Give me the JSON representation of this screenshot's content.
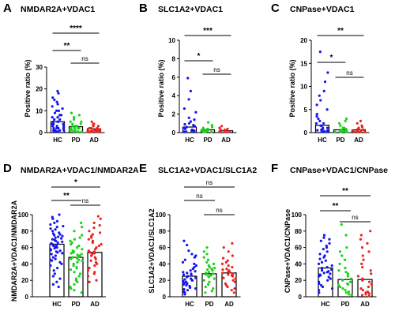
{
  "figure": {
    "groups": [
      "HC",
      "PD",
      "AD"
    ],
    "colors": {
      "HC": "#1515ee",
      "PD": "#19d219",
      "AD": "#ee2222"
    }
  },
  "chart_data": [
    {
      "type": "bar",
      "panel_label": "A",
      "title": "NMDAR2A+VDAC1",
      "ylabel": "Positive ratio (%)",
      "categories": [
        "HC",
        "PD",
        "AD"
      ],
      "values": [
        5.0,
        2.7,
        1.7
      ],
      "ylim": [
        0,
        30
      ],
      "yticks": [
        0,
        10,
        20,
        30
      ],
      "significance": [
        {
          "from": "HC",
          "to": "AD",
          "label": "****"
        },
        {
          "from": "HC",
          "to": "PD",
          "label": "**"
        },
        {
          "from": "PD",
          "to": "AD",
          "label": "ns"
        }
      ],
      "points": {
        "HC": [
          19,
          18,
          16,
          15,
          14,
          13,
          12,
          11,
          10,
          10,
          9,
          8,
          8,
          7,
          7,
          6,
          6,
          5,
          5,
          5,
          4,
          4,
          4,
          3,
          3,
          3,
          2,
          2,
          2,
          2,
          1,
          1,
          1,
          1,
          0.5,
          0.5,
          0.3,
          0.2
        ],
        "PD": [
          9,
          8,
          7,
          6,
          5,
          5,
          4,
          4,
          3,
          3,
          3,
          2,
          2,
          2,
          2,
          1,
          1,
          1,
          1,
          0.5,
          0.5,
          0.3,
          0.2
        ],
        "AD": [
          5,
          4,
          4,
          3,
          3,
          3,
          3,
          2,
          2,
          2,
          2,
          2,
          2,
          1.5,
          1.5,
          1,
          1,
          1,
          1,
          1,
          0.8,
          0.8,
          0.5,
          0.5,
          0.5,
          0.3,
          0.3,
          0.2,
          0.1,
          0.1
        ]
      }
    },
    {
      "type": "bar",
      "panel_label": "B",
      "title": "SLC1A2+VDAC1",
      "ylabel": "Positive ratio (%)",
      "categories": [
        "HC",
        "PD",
        "AD"
      ],
      "values": [
        0.6,
        0.3,
        0.2
      ],
      "ylim": [
        0,
        10
      ],
      "yticks": [
        0,
        2,
        4,
        6,
        8,
        10
      ],
      "significance": [
        {
          "from": "HC",
          "to": "AD",
          "label": "***"
        },
        {
          "from": "HC",
          "to": "PD",
          "label": "*"
        },
        {
          "from": "PD",
          "to": "AD",
          "label": "ns"
        }
      ],
      "points": {
        "HC": [
          5.9,
          4.5,
          3.6,
          2.6,
          2.2,
          1.6,
          1.4,
          1.2,
          1,
          0.9,
          0.8,
          0.7,
          0.6,
          0.5,
          0.4,
          0.3,
          0.3,
          0.2,
          0.2,
          0.1,
          0.1,
          0,
          0,
          0,
          0
        ],
        "PD": [
          1.1,
          0.8,
          0.6,
          0.5,
          0.4,
          0.3,
          0.3,
          0.2,
          0.2,
          0.1,
          0.1,
          0,
          0,
          0
        ],
        "AD": [
          0.7,
          0.5,
          0.4,
          0.3,
          0.3,
          0.2,
          0.2,
          0.1,
          0.1,
          0,
          0,
          0
        ]
      }
    },
    {
      "type": "bar",
      "panel_label": "C",
      "title": "CNPase+VDAC1",
      "ylabel": "Positive ratio (%)",
      "categories": [
        "HC",
        "PD",
        "AD"
      ],
      "values": [
        1.6,
        0.6,
        0.6
      ],
      "ylim": [
        0,
        20
      ],
      "yticks": [
        0,
        5,
        10,
        15,
        20
      ],
      "significance": [
        {
          "from": "HC",
          "to": "AD",
          "label": "**"
        },
        {
          "from": "HC",
          "to": "PD",
          "label": "*"
        },
        {
          "from": "PD",
          "to": "AD",
          "label": "ns"
        }
      ],
      "points": {
        "HC": [
          17.5,
          13,
          11,
          9,
          8,
          7,
          6,
          5,
          4,
          3.5,
          3,
          2.5,
          2,
          2,
          1.5,
          1.5,
          1,
          1,
          0.8,
          0.6,
          0.5,
          0.4,
          0.3,
          0.2,
          0.1,
          0.1,
          0
        ],
        "PD": [
          3,
          2.5,
          2,
          1.5,
          1,
          1,
          0.8,
          0.6,
          0.5,
          0.4,
          0.3,
          0.2,
          0.1,
          0.1,
          0
        ],
        "AD": [
          2.5,
          2,
          1.5,
          1.2,
          1,
          0.8,
          0.6,
          0.5,
          0.4,
          0.3,
          0.2,
          0.2,
          0.1,
          0
        ]
      }
    },
    {
      "type": "bar",
      "panel_label": "D",
      "title": "NMDAR2A+VDAC1/NMDAR2A",
      "ylabel": "NMDAR2A+VDAC1/NMDAR2A",
      "categories": [
        "HC",
        "PD",
        "AD"
      ],
      "values": [
        64,
        48,
        54
      ],
      "ylim": [
        0,
        100
      ],
      "yticks": [
        0,
        20,
        40,
        60,
        80,
        100
      ],
      "significance": [
        {
          "from": "HC",
          "to": "AD",
          "label": "*"
        },
        {
          "from": "HC",
          "to": "PD",
          "label": "**"
        },
        {
          "from": "PD",
          "to": "AD",
          "label": "ns"
        }
      ],
      "points": {
        "HC": [
          100,
          97,
          95,
          92,
          90,
          88,
          86,
          85,
          83,
          82,
          80,
          78,
          77,
          76,
          75,
          74,
          73,
          72,
          71,
          70,
          69,
          68,
          67,
          66,
          65,
          64,
          63,
          62,
          61,
          60,
          59,
          58,
          57,
          56,
          55,
          54,
          53,
          52,
          50,
          48,
          46,
          45,
          44,
          42,
          40,
          38,
          35,
          32,
          28,
          25,
          22,
          18,
          15,
          12
        ],
        "PD": [
          90,
          85,
          80,
          75,
          72,
          70,
          68,
          66,
          64,
          62,
          60,
          58,
          56,
          55,
          54,
          53,
          52,
          51,
          50,
          49,
          48,
          47,
          46,
          45,
          44,
          42,
          40,
          38,
          36,
          35,
          33,
          30,
          28,
          25,
          22,
          20,
          18,
          15,
          12,
          10,
          8,
          5
        ],
        "AD": [
          98,
          95,
          90,
          87,
          84,
          80,
          78,
          76,
          74,
          72,
          70,
          68,
          66,
          64,
          62,
          60,
          58,
          56,
          55,
          54,
          53,
          52,
          50,
          48,
          46,
          44,
          42,
          40,
          38,
          35,
          32,
          30,
          28,
          25,
          20,
          18
        ]
      }
    },
    {
      "type": "bar",
      "panel_label": "E",
      "title": "SLC1A2+VDAC1/SLC1A2",
      "ylabel": "SLC1A2+VDAC1/SLC1A2",
      "categories": [
        "HC",
        "PD",
        "AD"
      ],
      "values": [
        25,
        28,
        29
      ],
      "ylim": [
        0,
        100
      ],
      "yticks": [
        0,
        20,
        40,
        60,
        80,
        100
      ],
      "significance": [
        {
          "from": "HC",
          "to": "AD",
          "label": "ns"
        },
        {
          "from": "HC",
          "to": "PD",
          "label": "ns"
        },
        {
          "from": "PD",
          "to": "AD",
          "label": "ns"
        }
      ],
      "points": {
        "HC": [
          68,
          63,
          56,
          52,
          50,
          48,
          45,
          42,
          40,
          38,
          36,
          34,
          32,
          31,
          30,
          29,
          28,
          27,
          26,
          25,
          24,
          23,
          22,
          21,
          20,
          20,
          19,
          18,
          17,
          16,
          15,
          14,
          13,
          12,
          11,
          10,
          9,
          8,
          6,
          5,
          3
        ],
        "PD": [
          60,
          55,
          52,
          48,
          45,
          42,
          40,
          38,
          36,
          35,
          34,
          33,
          32,
          30,
          29,
          28,
          27,
          26,
          25,
          24,
          22,
          20,
          18,
          15,
          12,
          10,
          7,
          5
        ],
        "AD": [
          65,
          60,
          55,
          50,
          47,
          44,
          42,
          40,
          38,
          36,
          34,
          33,
          32,
          31,
          30,
          29,
          28,
          27,
          26,
          25,
          23,
          22,
          20,
          18,
          16,
          14,
          12,
          10,
          8,
          5
        ]
      }
    },
    {
      "type": "bar",
      "panel_label": "F",
      "title": "CNPase+VDAC1/CNPase",
      "ylabel": "CNPase+VDAC1/CNPase",
      "categories": [
        "HC",
        "PD",
        "AD"
      ],
      "values": [
        35,
        21,
        21
      ],
      "ylim": [
        0,
        100
      ],
      "yticks": [
        0,
        20,
        40,
        60,
        80,
        100
      ],
      "significance": [
        {
          "from": "HC",
          "to": "AD",
          "label": "**"
        },
        {
          "from": "HC",
          "to": "PD",
          "label": "**"
        },
        {
          "from": "PD",
          "to": "AD",
          "label": "ns"
        }
      ],
      "points": {
        "HC": [
          75,
          72,
          70,
          68,
          65,
          62,
          60,
          58,
          55,
          52,
          50,
          48,
          46,
          44,
          42,
          40,
          38,
          36,
          35,
          34,
          33,
          32,
          31,
          30,
          29,
          28,
          27,
          26,
          25,
          24,
          22,
          20,
          18,
          16,
          14,
          12,
          10,
          8,
          5
        ],
        "PD": [
          88,
          75,
          60,
          55,
          50,
          45,
          40,
          35,
          32,
          30,
          28,
          25,
          22,
          20,
          18,
          16,
          15,
          14,
          12,
          10,
          8,
          6,
          5,
          3,
          2
        ],
        "AD": [
          80,
          75,
          70,
          65,
          60,
          55,
          50,
          45,
          40,
          36,
          32,
          28,
          25,
          22,
          20,
          18,
          15,
          12,
          10,
          8,
          6,
          5,
          4,
          3,
          2,
          1
        ]
      }
    }
  ]
}
